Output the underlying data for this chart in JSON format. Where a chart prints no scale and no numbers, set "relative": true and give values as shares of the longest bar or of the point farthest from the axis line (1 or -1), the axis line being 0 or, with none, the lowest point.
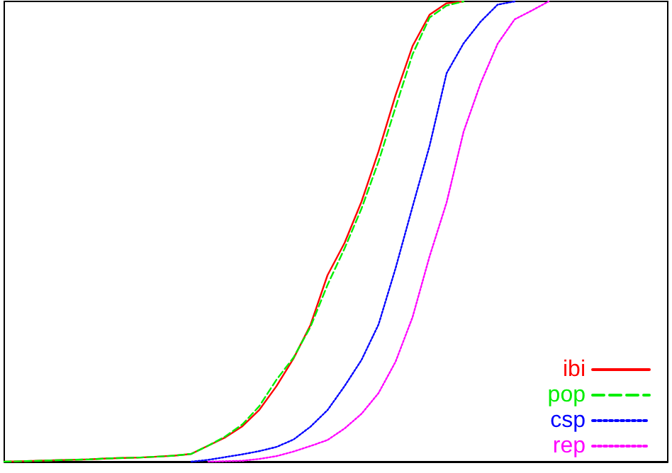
{
  "chart_data": {
    "type": "line",
    "relative": true,
    "grid": false,
    "legend": "bottom right",
    "marker": "none",
    "categories": [
      null,
      null,
      null,
      null,
      null,
      null,
      null,
      null,
      null,
      null,
      null,
      null,
      null,
      null,
      null,
      null,
      null,
      null,
      null,
      null,
      null,
      null,
      null,
      null,
      null,
      null,
      null,
      null,
      null,
      null,
      null,
      null,
      null,
      null,
      null,
      null,
      null,
      null,
      null,
      null
    ],
    "series": [
      {
        "name": "ibi",
        "color": "#ff0000",
        "line_style": "solid",
        "values": [
          0,
          0.001,
          0.002,
          0.003,
          0.004,
          0.005,
          0.007,
          0.008,
          0.009,
          0.011,
          0.013,
          0.017,
          0.035,
          0.053,
          0.077,
          0.113,
          0.164,
          0.224,
          0.297,
          0.405,
          0.475,
          0.565,
          0.674,
          0.796,
          0.903,
          0.971,
          0.996,
          1,
          null,
          null,
          null,
          null,
          null,
          null,
          null,
          null,
          null,
          null,
          null,
          null
        ]
      },
      {
        "name": "pop",
        "color": "#00ee00",
        "line_style": "dashed",
        "values": [
          0,
          0.001,
          0.002,
          0.003,
          0.004,
          0.005,
          0.007,
          0.008,
          0.009,
          0.011,
          0.013,
          0.017,
          0.035,
          0.055,
          0.081,
          0.121,
          0.178,
          0.226,
          0.293,
          0.384,
          0.463,
          0.55,
          0.652,
          0.77,
          0.885,
          0.965,
          0.991,
          1,
          null,
          null,
          null,
          null,
          null,
          null,
          null,
          null,
          null,
          null,
          null,
          null
        ]
      },
      {
        "name": "csp",
        "color": "#0000ff",
        "line_style": "dotted",
        "values": [
          null,
          null,
          null,
          null,
          null,
          null,
          null,
          null,
          null,
          null,
          null,
          0,
          0.004,
          0.01,
          0.016,
          0.023,
          0.032,
          0.048,
          0.076,
          0.112,
          0.164,
          0.221,
          0.298,
          0.42,
          0.554,
          0.686,
          0.844,
          0.909,
          0.956,
          0.993,
          1,
          null,
          null,
          null,
          null,
          null,
          null,
          null,
          null,
          null
        ]
      },
      {
        "name": "rep",
        "color": "#ff00ff",
        "line_style": "dotted",
        "values": [
          null,
          null,
          null,
          null,
          null,
          null,
          null,
          null,
          null,
          null,
          null,
          null,
          0,
          0.001,
          0.002,
          0.006,
          0.012,
          0.022,
          0.034,
          0.047,
          0.072,
          0.104,
          0.149,
          0.217,
          0.314,
          0.446,
          0.563,
          0.717,
          0.822,
          0.908,
          0.961,
          0.98,
          1,
          null,
          null,
          null,
          null,
          null,
          null,
          null
        ]
      }
    ]
  }
}
